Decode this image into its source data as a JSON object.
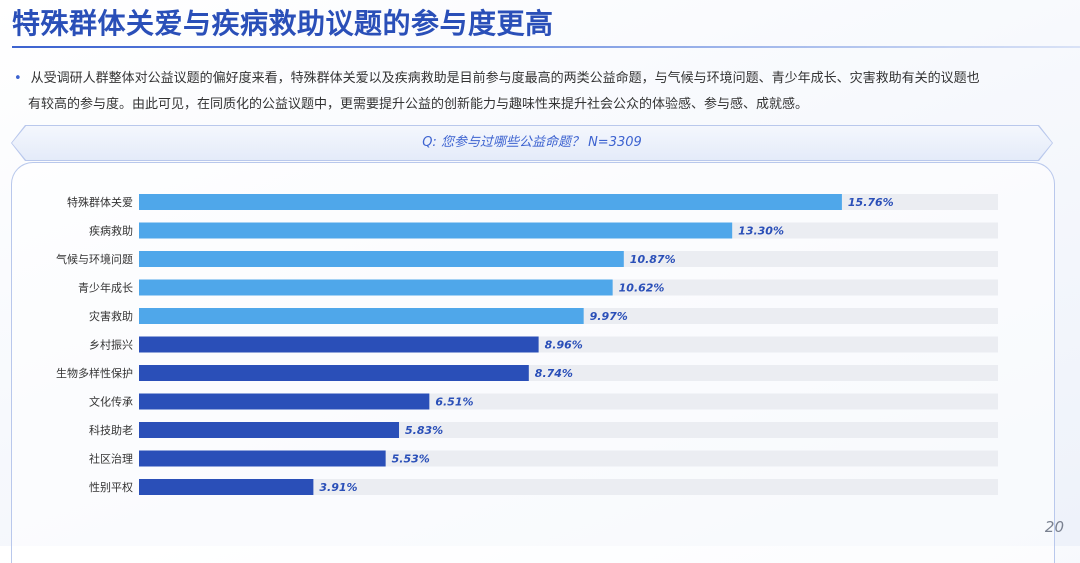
{
  "page": {
    "title": "特殊群体关爱与疾病救助议题的参与度更高",
    "description_line1": "从受调研人群整体对公益议题的偏好度来看，特殊群体关爱以及疾病救助是目前参与度最高的两类公益命题，与气候与环境问题、青少年成长、灾害救助有关的议题也",
    "description_line2": "有较高的参与度。由此可见，在同质化的公益议题中，更需要提升公益的创新能力与趣味性来提升社会公众的体验感、参与感、成就感。",
    "question": "Q: 您参与过哪些公益命题？ N=3309",
    "page_number": "20"
  },
  "colors": {
    "title": "#2a4fb8",
    "bar_light": "#4fa7ea",
    "bar_dark": "#2a4fb8",
    "track": "#ebedf2",
    "value_label": "#2a4fb8"
  },
  "chart_data": {
    "type": "bar",
    "orientation": "horizontal",
    "title": "Q: 您参与过哪些公益命题？ N=3309",
    "categories": [
      "特殊群体关爱",
      "疾病救助",
      "气候与环境问题",
      "青少年成长",
      "灾害救助",
      "乡村振兴",
      "生物多样性保护",
      "文化传承",
      "科技助老",
      "社区治理",
      "性别平权"
    ],
    "values": [
      15.76,
      13.3,
      10.87,
      10.62,
      9.97,
      8.96,
      8.74,
      6.51,
      5.83,
      5.53,
      3.91
    ],
    "value_labels": [
      "15.76%",
      "13.30%",
      "10.87%",
      "10.62%",
      "9.97%",
      "8.96%",
      "8.74%",
      "6.51%",
      "5.83%",
      "5.53%",
      "3.91%"
    ],
    "color_groups": [
      "light",
      "light",
      "light",
      "light",
      "light",
      "dark",
      "dark",
      "dark",
      "dark",
      "dark",
      "dark"
    ],
    "xlim": [
      0,
      20
    ],
    "unit": "%",
    "grid": false
  }
}
